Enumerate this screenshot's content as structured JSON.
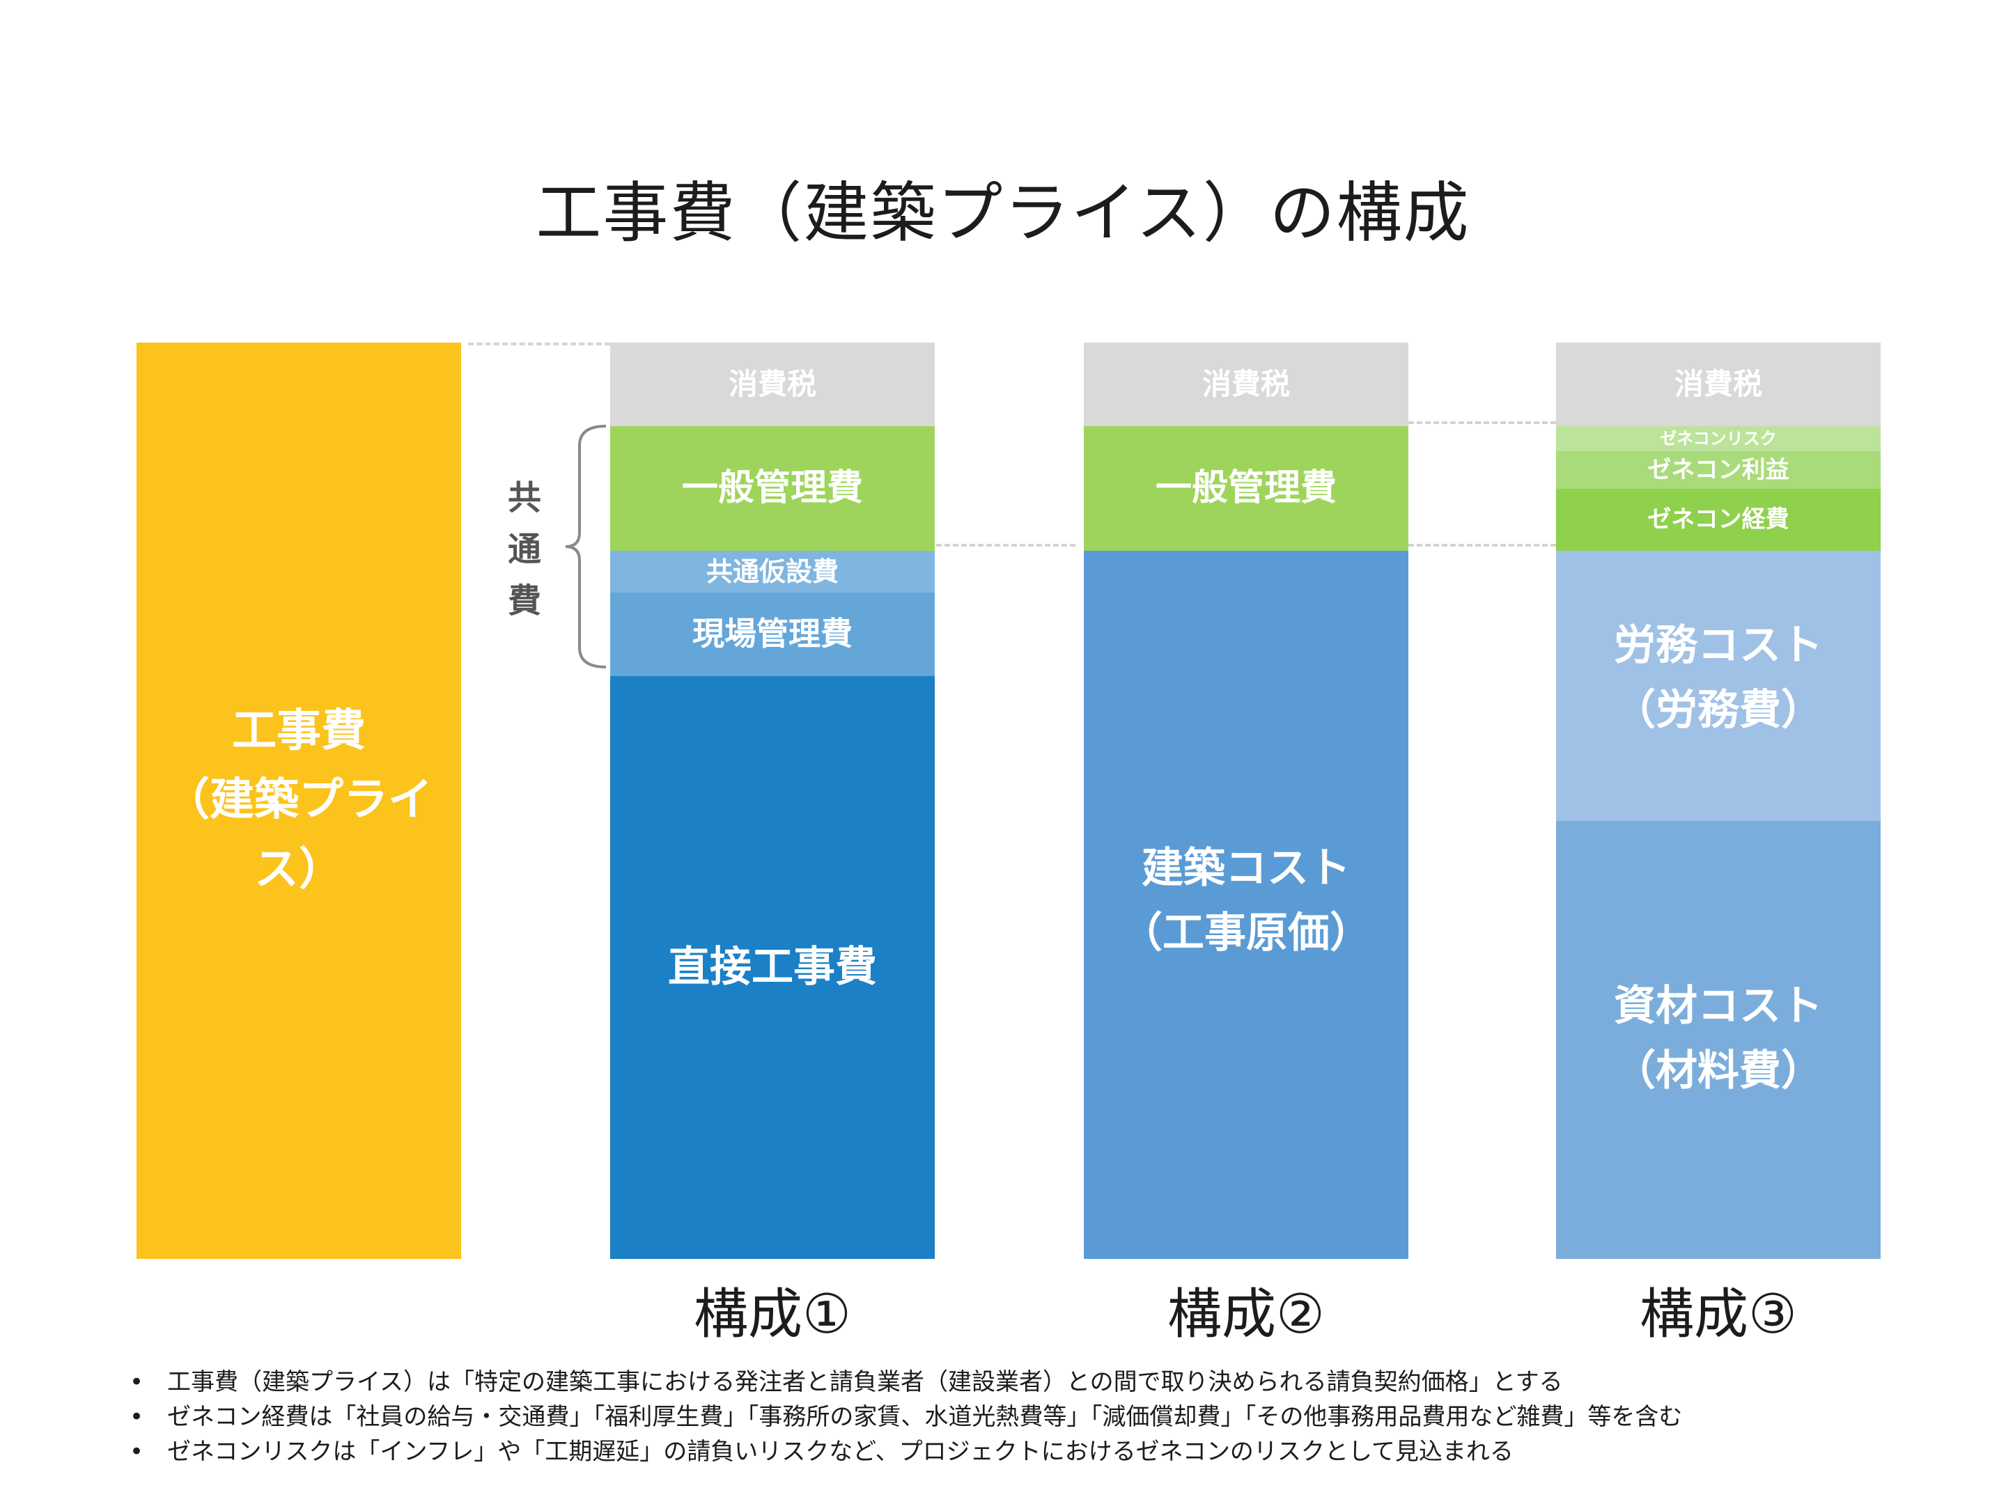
{
  "title": "工事費（建築プライス）の構成",
  "total_bar": {
    "line1": "工事費",
    "line2": "（建築プライス）",
    "color": "#fbc31b"
  },
  "bracket_label": [
    "共",
    "通",
    "費"
  ],
  "composition1": {
    "label": "構成①",
    "segments": {
      "tax": "消費税",
      "general_admin": "一般管理費",
      "common_temp": "共通仮設費",
      "site_admin": "現場管理費",
      "direct": "直接工事費"
    }
  },
  "composition2": {
    "label": "構成②",
    "segments": {
      "tax": "消費税",
      "general_admin": "一般管理費",
      "building_cost_line1": "建築コスト",
      "building_cost_line2": "（工事原価）"
    }
  },
  "composition3": {
    "label": "構成③",
    "segments": {
      "tax": "消費税",
      "gc_risk": "ゼネコンリスク",
      "gc_profit": "ゼネコン利益",
      "gc_expense": "ゼネコン経費",
      "labor_line1": "労務コスト",
      "labor_line2": "（労務費）",
      "material_line1": "資材コスト",
      "material_line2": "（材料費）"
    }
  },
  "colors": {
    "tax": "#d9d9d9",
    "general_admin": "#9ed45c",
    "common_temp": "#7fb5df",
    "site_admin": "#65a6d9",
    "direct": "#1b80c6",
    "building_cost": "#5b9bd5",
    "gc_risk": "#bde39b",
    "gc_profit": "#a9db7a",
    "gc_expense": "#8fd04d",
    "labor": "#9fc1e5",
    "material": "#7baddc"
  },
  "notes": [
    "工事費（建築プライス）は「特定の建築工事における発注者と請負業者（建設業者）との間で取り決められる請負契約価格」とする",
    "ゼネコン経費は「社員の給与・交通費」「福利厚生費」「事務所の家賃、水道光熱費等」「減価償却費」「その他事務用品費用など雑費」等を含む",
    "ゼネコンリスクは「インフレ」や「工期遅延」の請負いリスクなど、プロジェクトにおけるゼネコンのリスクとして見込まれる"
  ],
  "bullet": "•"
}
